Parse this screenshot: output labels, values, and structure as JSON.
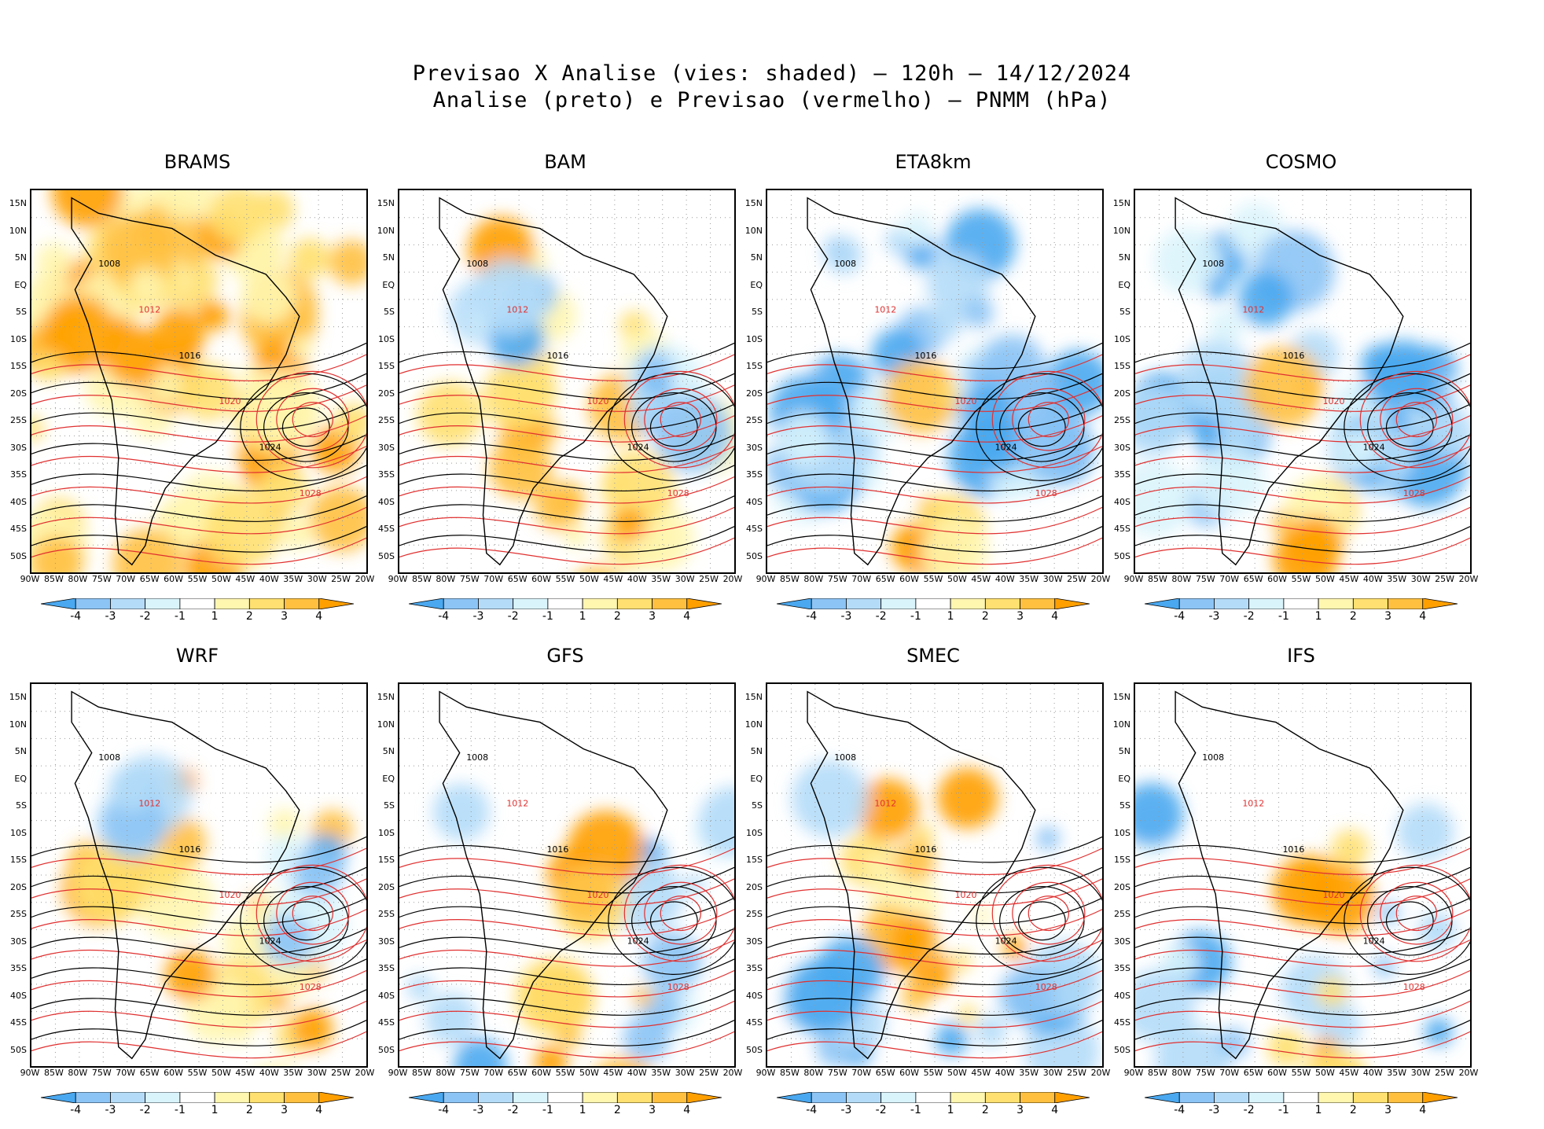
{
  "title": {
    "line1": "Previsao X Analise (vies: shaded) – 120h – 14/12/2024",
    "line2": "Analise (preto) e Previsao (vermelho) – PNMM (hPa)"
  },
  "panels": [
    {
      "name": "BRAMS",
      "bias": "warm"
    },
    {
      "name": "BAM",
      "bias": "mixed-warm"
    },
    {
      "name": "ETA8km",
      "bias": "cold"
    },
    {
      "name": "COSMO",
      "bias": "cold"
    },
    {
      "name": "WRF",
      "bias": "mixed-warm"
    },
    {
      "name": "GFS",
      "bias": "neutral"
    },
    {
      "name": "SMEC",
      "bias": "mixed"
    },
    {
      "name": "IFS",
      "bias": "neutral"
    }
  ],
  "lat_labels": [
    "15N",
    "10N",
    "5N",
    "EQ",
    "5S",
    "10S",
    "15S",
    "20S",
    "25S",
    "30S",
    "35S",
    "40S",
    "45S",
    "50S"
  ],
  "lon_labels": [
    "90W",
    "85W",
    "80W",
    "75W",
    "70W",
    "65W",
    "60W",
    "55W",
    "50W",
    "45W",
    "40W",
    "35W",
    "30W",
    "25W",
    "20W"
  ],
  "colorbar": {
    "labels": [
      "-4",
      "-3",
      "-2",
      "-1",
      "1",
      "2",
      "3",
      "4"
    ],
    "colors": [
      "#4aa8f0",
      "#8cc4f5",
      "#b4dcf8",
      "#daf4fc",
      "#ffffff",
      "#fff6b0",
      "#ffe070",
      "#ffc040",
      "#ffa000"
    ]
  },
  "contours": {
    "analysis_color": "#000000",
    "forecast_color": "#e03030",
    "labels": [
      "1008",
      "1012",
      "1016",
      "1020",
      "1024",
      "1028"
    ]
  }
}
